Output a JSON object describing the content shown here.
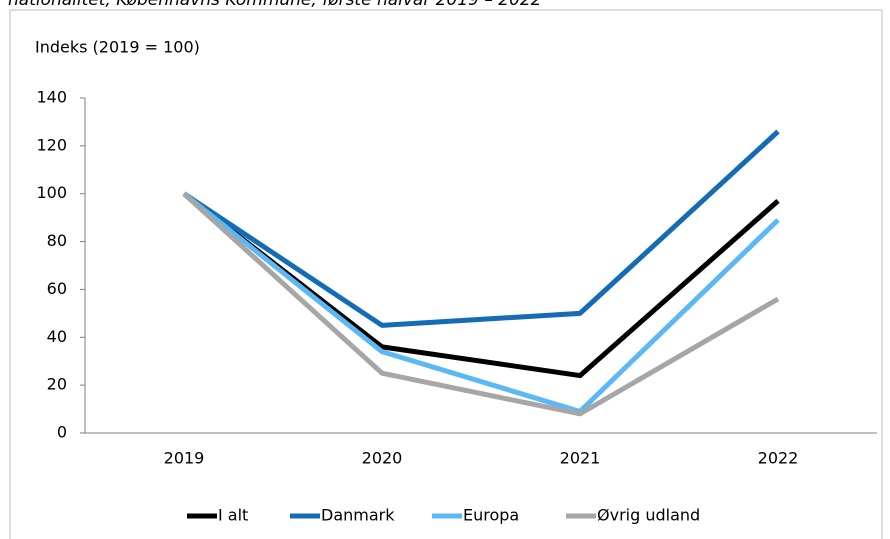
{
  "chart_data": {
    "type": "line",
    "title": "nationalitet, Københavns Kommune, første halvår 2019 – 2022",
    "y_label": "Indeks (2019 = 100)",
    "categories": [
      "2019",
      "2020",
      "2021",
      "2022"
    ],
    "series": [
      {
        "name": "I alt",
        "color": "#000000",
        "values": [
          100,
          36,
          24,
          97
        ]
      },
      {
        "name": "Danmark",
        "color": "#136cb5",
        "values": [
          100,
          45,
          50,
          126
        ]
      },
      {
        "name": "Europa",
        "color": "#5cb8f4",
        "values": [
          100,
          34,
          9,
          89
        ]
      },
      {
        "name": "Øvrig udland",
        "color": "#a6a6a6",
        "values": [
          100,
          25,
          8,
          56
        ]
      }
    ],
    "ylim": [
      0,
      140
    ],
    "yticks": [
      0,
      20,
      40,
      60,
      80,
      100,
      120,
      140
    ],
    "grid": false,
    "legend": "bottom"
  }
}
